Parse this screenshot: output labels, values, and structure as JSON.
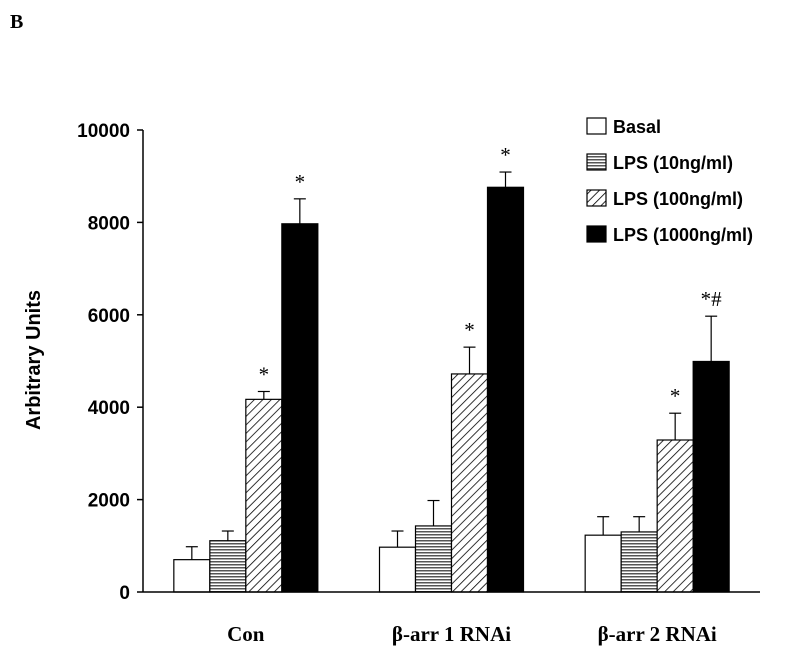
{
  "panel_label": "B",
  "chart_data": {
    "type": "bar",
    "ylabel": "Arbitrary Units",
    "xlabel": "",
    "ylim": [
      0,
      10000
    ],
    "yticks": [
      "0",
      "2000",
      "4000",
      "6000",
      "8000",
      "10000"
    ],
    "categories": [
      "Con",
      "β-arr 1  RNAi",
      "β-arr 2 RNAi"
    ],
    "legend_position": "top-right",
    "series": [
      {
        "name": "Basal",
        "pattern": "white",
        "values": [
          700,
          970,
          1230
        ],
        "errors": [
          280,
          350,
          400
        ]
      },
      {
        "name": "LPS (10ng/ml)",
        "pattern": "horizontal-lines",
        "values": [
          1110,
          1430,
          1300
        ],
        "errors": [
          210,
          550,
          330
        ]
      },
      {
        "name": "LPS (100ng/ml)",
        "pattern": "diagonal-hatch",
        "values": [
          4170,
          4720,
          3290
        ],
        "errors": [
          170,
          580,
          580
        ]
      },
      {
        "name": "LPS (1000ng/ml)",
        "pattern": "solid-black",
        "values": [
          7970,
          8760,
          4990
        ],
        "errors": [
          540,
          330,
          980
        ]
      }
    ],
    "annotations": [
      {
        "category": 0,
        "series": 2,
        "text": "*"
      },
      {
        "category": 0,
        "series": 3,
        "text": "*"
      },
      {
        "category": 1,
        "series": 2,
        "text": "*"
      },
      {
        "category": 1,
        "series": 3,
        "text": "*"
      },
      {
        "category": 2,
        "series": 2,
        "text": "*"
      },
      {
        "category": 2,
        "series": 3,
        "text": "*#"
      }
    ]
  }
}
